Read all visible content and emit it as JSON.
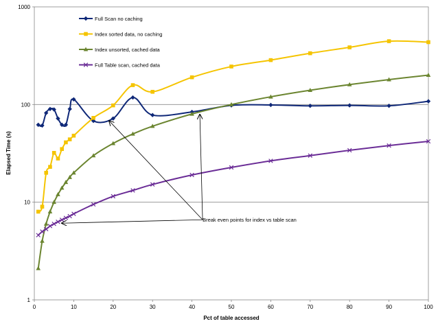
{
  "chart_data": {
    "type": "line",
    "title": "",
    "xlabel": "Pct of table accessed",
    "ylabel": "Elapsed Time (s)",
    "xlim": [
      0,
      100
    ],
    "ylim": [
      1,
      1000
    ],
    "yscale": "log",
    "x_ticks": [
      "0",
      "10",
      "20",
      "30",
      "40",
      "50",
      "60",
      "70",
      "80",
      "90",
      "100"
    ],
    "y_ticks": [
      "1",
      "10",
      "100",
      "1000"
    ],
    "grid": "horizontal major gridlines",
    "legend_placement": "top-left inside plot",
    "series": [
      {
        "name": "Full Scan no caching",
        "color": "#0f2878",
        "marker": "diamond",
        "points": [
          [
            1,
            62
          ],
          [
            2,
            61
          ],
          [
            3,
            82
          ],
          [
            4,
            90
          ],
          [
            5,
            89
          ],
          [
            6,
            72
          ],
          [
            7,
            62
          ],
          [
            8,
            62
          ],
          [
            9,
            90
          ],
          [
            10,
            113
          ],
          [
            15,
            68
          ],
          [
            20,
            72
          ],
          [
            25,
            118
          ],
          [
            30,
            78
          ],
          [
            40,
            84
          ],
          [
            50,
            98
          ],
          [
            60,
            99
          ],
          [
            70,
            97
          ],
          [
            80,
            98
          ],
          [
            90,
            97
          ],
          [
            100,
            108
          ]
        ]
      },
      {
        "name": "Index sorted data, no caching",
        "color": "#f5c400",
        "marker": "square",
        "points": [
          [
            1,
            8
          ],
          [
            2,
            9
          ],
          [
            3,
            20
          ],
          [
            4,
            23
          ],
          [
            5,
            32
          ],
          [
            6,
            28
          ],
          [
            7,
            35
          ],
          [
            8,
            41
          ],
          [
            9,
            44
          ],
          [
            10,
            48
          ],
          [
            15,
            73
          ],
          [
            20,
            98
          ],
          [
            25,
            158
          ],
          [
            30,
            135
          ],
          [
            40,
            190
          ],
          [
            50,
            245
          ],
          [
            60,
            285
          ],
          [
            70,
            335
          ],
          [
            80,
            385
          ],
          [
            90,
            445
          ],
          [
            100,
            435
          ]
        ]
      },
      {
        "name": "Index unsorted, cached data",
        "color": "#6b8530",
        "marker": "triangle",
        "points": [
          [
            1,
            2.1
          ],
          [
            2,
            4
          ],
          [
            3,
            6
          ],
          [
            4,
            8
          ],
          [
            5,
            10
          ],
          [
            6,
            12
          ],
          [
            7,
            14
          ],
          [
            8,
            16
          ],
          [
            9,
            18
          ],
          [
            10,
            20
          ],
          [
            15,
            30
          ],
          [
            20,
            40
          ],
          [
            25,
            50
          ],
          [
            30,
            60
          ],
          [
            40,
            80
          ],
          [
            50,
            100
          ],
          [
            60,
            120
          ],
          [
            70,
            140
          ],
          [
            80,
            160
          ],
          [
            90,
            180
          ],
          [
            100,
            200
          ]
        ]
      },
      {
        "name": "Full Table scan, cached data",
        "color": "#6a2c96",
        "marker": "x",
        "points": [
          [
            1,
            4.6
          ],
          [
            2,
            5
          ],
          [
            3,
            5.3
          ],
          [
            4,
            5.7
          ],
          [
            5,
            6
          ],
          [
            6,
            6.3
          ],
          [
            7,
            6.6
          ],
          [
            8,
            6.9
          ],
          [
            9,
            7.2
          ],
          [
            10,
            7.6
          ],
          [
            15,
            9.5
          ],
          [
            20,
            11.5
          ],
          [
            25,
            13.2
          ],
          [
            30,
            15.2
          ],
          [
            40,
            19
          ],
          [
            50,
            22.7
          ],
          [
            60,
            26.5
          ],
          [
            70,
            30
          ],
          [
            80,
            34
          ],
          [
            90,
            38
          ],
          [
            100,
            42
          ]
        ]
      }
    ],
    "annotation": {
      "text": "Break even points for index vs table scan",
      "anchor": [
        42,
        6.2
      ],
      "targets": [
        [
          19,
          68
        ],
        [
          42,
          79
        ],
        [
          7,
          6.1
        ]
      ]
    }
  }
}
